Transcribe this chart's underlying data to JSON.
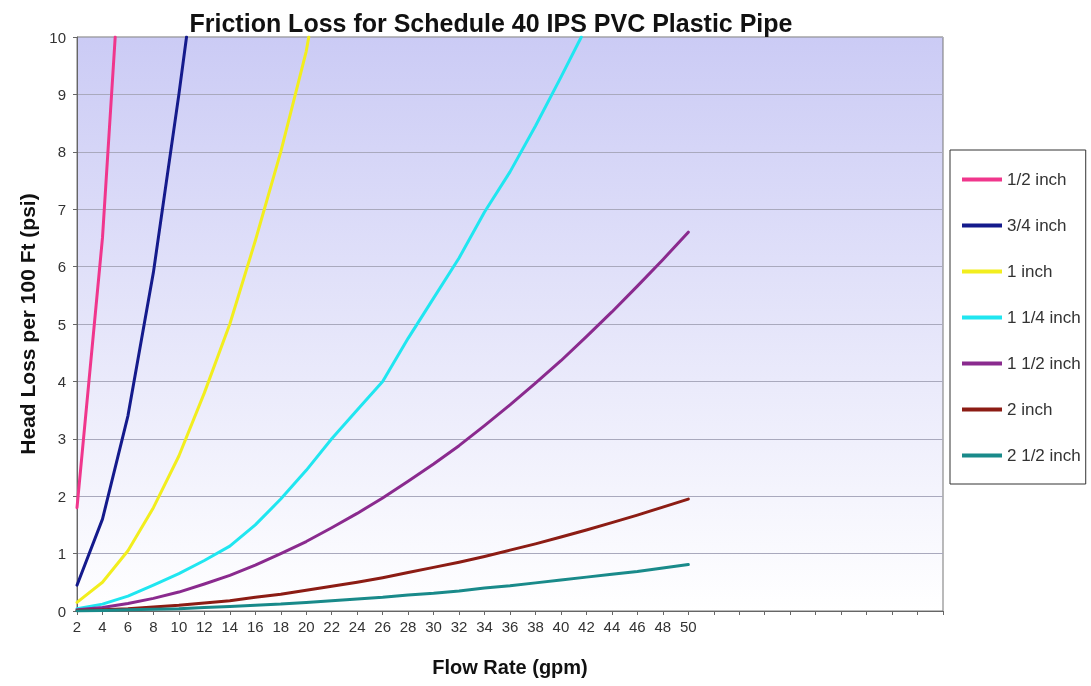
{
  "chart_data": {
    "type": "line",
    "title": "Friction Loss for Schedule 40 IPS PVC Plastic Pipe",
    "xlabel": "Flow Rate (gpm)",
    "ylabel": "Head Loss per 100 Ft (psi)",
    "xlim": [
      2,
      70
    ],
    "xticks": [
      2,
      4,
      6,
      8,
      10,
      12,
      14,
      16,
      18,
      20,
      22,
      24,
      26,
      28,
      30,
      32,
      34,
      36,
      38,
      40,
      42,
      44,
      46,
      48,
      50,
      {
        "value": 52,
        "label": null
      },
      {
        "value": 54,
        "label": null
      },
      {
        "value": 56,
        "label": null
      },
      {
        "value": 58,
        "label": null
      },
      {
        "value": 60,
        "label": null
      },
      {
        "value": 62,
        "label": null
      },
      {
        "value": 64,
        "label": null
      },
      {
        "value": 66,
        "label": null
      },
      {
        "value": 68,
        "label": null
      },
      {
        "value": 70,
        "label": null
      }
    ],
    "ylim": [
      0,
      10
    ],
    "yticks": [
      0,
      1,
      2,
      3,
      4,
      5,
      6,
      7,
      8,
      9,
      10
    ],
    "grid": "y",
    "legend": "right",
    "marker": "none",
    "line_style": "solid",
    "series": [
      {
        "name": "1/2 inch",
        "color": "#f0368c",
        "x": [
          2,
          4,
          5
        ],
        "values": [
          1.8,
          6.5,
          10
        ]
      },
      {
        "name": "3/4 inch",
        "color": "#141a8c",
        "x": [
          2,
          4,
          6,
          8,
          10,
          10.6
        ],
        "values": [
          0.45,
          1.6,
          3.4,
          5.9,
          9.0,
          10
        ]
      },
      {
        "name": "1 inch",
        "color": "#f2ee1e",
        "x": [
          2,
          4,
          6,
          8,
          10,
          12,
          14,
          16,
          18,
          20,
          20.2
        ],
        "values": [
          0.15,
          0.5,
          1.05,
          1.8,
          2.7,
          3.8,
          5.0,
          6.45,
          8.0,
          9.75,
          10
        ]
      },
      {
        "name": "1 1/4 inch",
        "color": "#20e6f0",
        "x": [
          2,
          4,
          6,
          8,
          10,
          12,
          14,
          16,
          18,
          20,
          22,
          24,
          26,
          28,
          30,
          32,
          34,
          36,
          38,
          40,
          41.6
        ],
        "values": [
          0.04,
          0.12,
          0.26,
          0.45,
          0.65,
          0.88,
          1.13,
          1.5,
          1.95,
          2.45,
          3.0,
          3.5,
          4.0,
          4.75,
          5.45,
          6.15,
          6.95,
          7.65,
          8.45,
          9.3,
          10
        ]
      },
      {
        "name": "1 1/2 inch",
        "color": "#8a2a8e",
        "x": [
          2,
          4,
          6,
          8,
          10,
          12,
          14,
          16,
          18,
          20,
          22,
          24,
          26,
          28,
          30,
          32,
          34,
          36,
          38,
          40,
          42,
          44,
          46,
          48,
          50
        ],
        "values": [
          0.02,
          0.06,
          0.13,
          0.22,
          0.33,
          0.47,
          0.62,
          0.8,
          1.0,
          1.21,
          1.45,
          1.7,
          1.97,
          2.26,
          2.56,
          2.88,
          3.23,
          3.59,
          3.97,
          4.36,
          4.78,
          5.21,
          5.66,
          6.12,
          6.6
        ]
      },
      {
        "name": "2 inch",
        "color": "#8c1c14",
        "x": [
          2,
          4,
          6,
          8,
          10,
          12,
          14,
          16,
          18,
          20,
          22,
          24,
          26,
          28,
          30,
          32,
          34,
          36,
          38,
          40,
          42,
          44,
          46,
          48,
          50
        ],
        "values": [
          0.01,
          0.02,
          0.04,
          0.07,
          0.1,
          0.14,
          0.18,
          0.24,
          0.29,
          0.36,
          0.43,
          0.5,
          0.58,
          0.67,
          0.76,
          0.85,
          0.95,
          1.06,
          1.17,
          1.29,
          1.41,
          1.54,
          1.67,
          1.81,
          1.95
        ]
      },
      {
        "name": "2 1/2 inch",
        "color": "#198a8a",
        "x": [
          2,
          4,
          6,
          8,
          10,
          12,
          14,
          16,
          18,
          20,
          22,
          24,
          26,
          28,
          30,
          32,
          34,
          36,
          38,
          40,
          42,
          44,
          46,
          48,
          50
        ],
        "values": [
          0.0,
          0.01,
          0.02,
          0.03,
          0.04,
          0.06,
          0.08,
          0.1,
          0.12,
          0.15,
          0.18,
          0.21,
          0.24,
          0.28,
          0.31,
          0.35,
          0.4,
          0.44,
          0.49,
          0.54,
          0.59,
          0.64,
          0.69,
          0.75,
          0.81
        ]
      }
    ]
  }
}
